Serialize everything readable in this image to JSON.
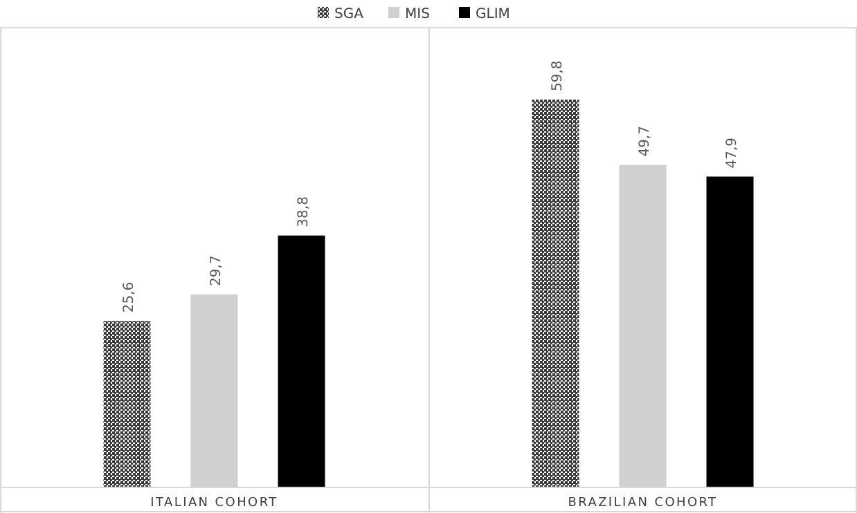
{
  "chart_data": {
    "type": "bar",
    "categories": [
      "ITALIAN COHORT",
      "BRAZILIAN COHORT"
    ],
    "series": [
      {
        "name": "SGA",
        "color": "#3a3a3a",
        "values": [
          25.6,
          59.8
        ],
        "value_labels": [
          "25,6",
          "59,8"
        ]
      },
      {
        "name": "MIS",
        "color": "#d0d0d0",
        "values": [
          29.7,
          49.7
        ],
        "value_labels": [
          "29,7",
          "49,7"
        ]
      },
      {
        "name": "GLIM",
        "color": "#000000",
        "values": [
          38.8,
          47.9
        ],
        "value_labels": [
          "38,8",
          "47,9"
        ]
      }
    ],
    "legend": "top"
  }
}
